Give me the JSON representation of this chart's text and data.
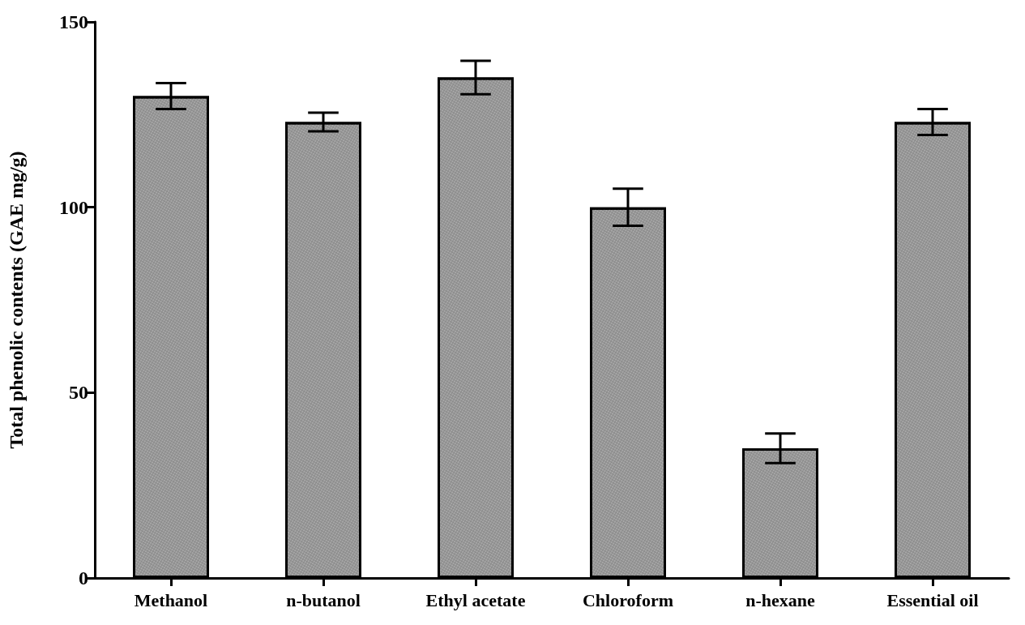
{
  "chart_data": {
    "type": "bar",
    "ylabel": "Total phenolic contents (GAE mg/g)",
    "categories": [
      "Methanol",
      "n-butanol",
      "Ethyl acetate",
      "Chloroform",
      "n-hexane",
      "Essential oil"
    ],
    "values": [
      130,
      123,
      135,
      100,
      35,
      123
    ],
    "errors": [
      3.5,
      2.5,
      4.5,
      5,
      4,
      3.5
    ],
    "color": "#8c8c8c",
    "ylim": [
      0,
      150
    ],
    "yticks": [
      0,
      50,
      100,
      150
    ],
    "grid": false
  }
}
